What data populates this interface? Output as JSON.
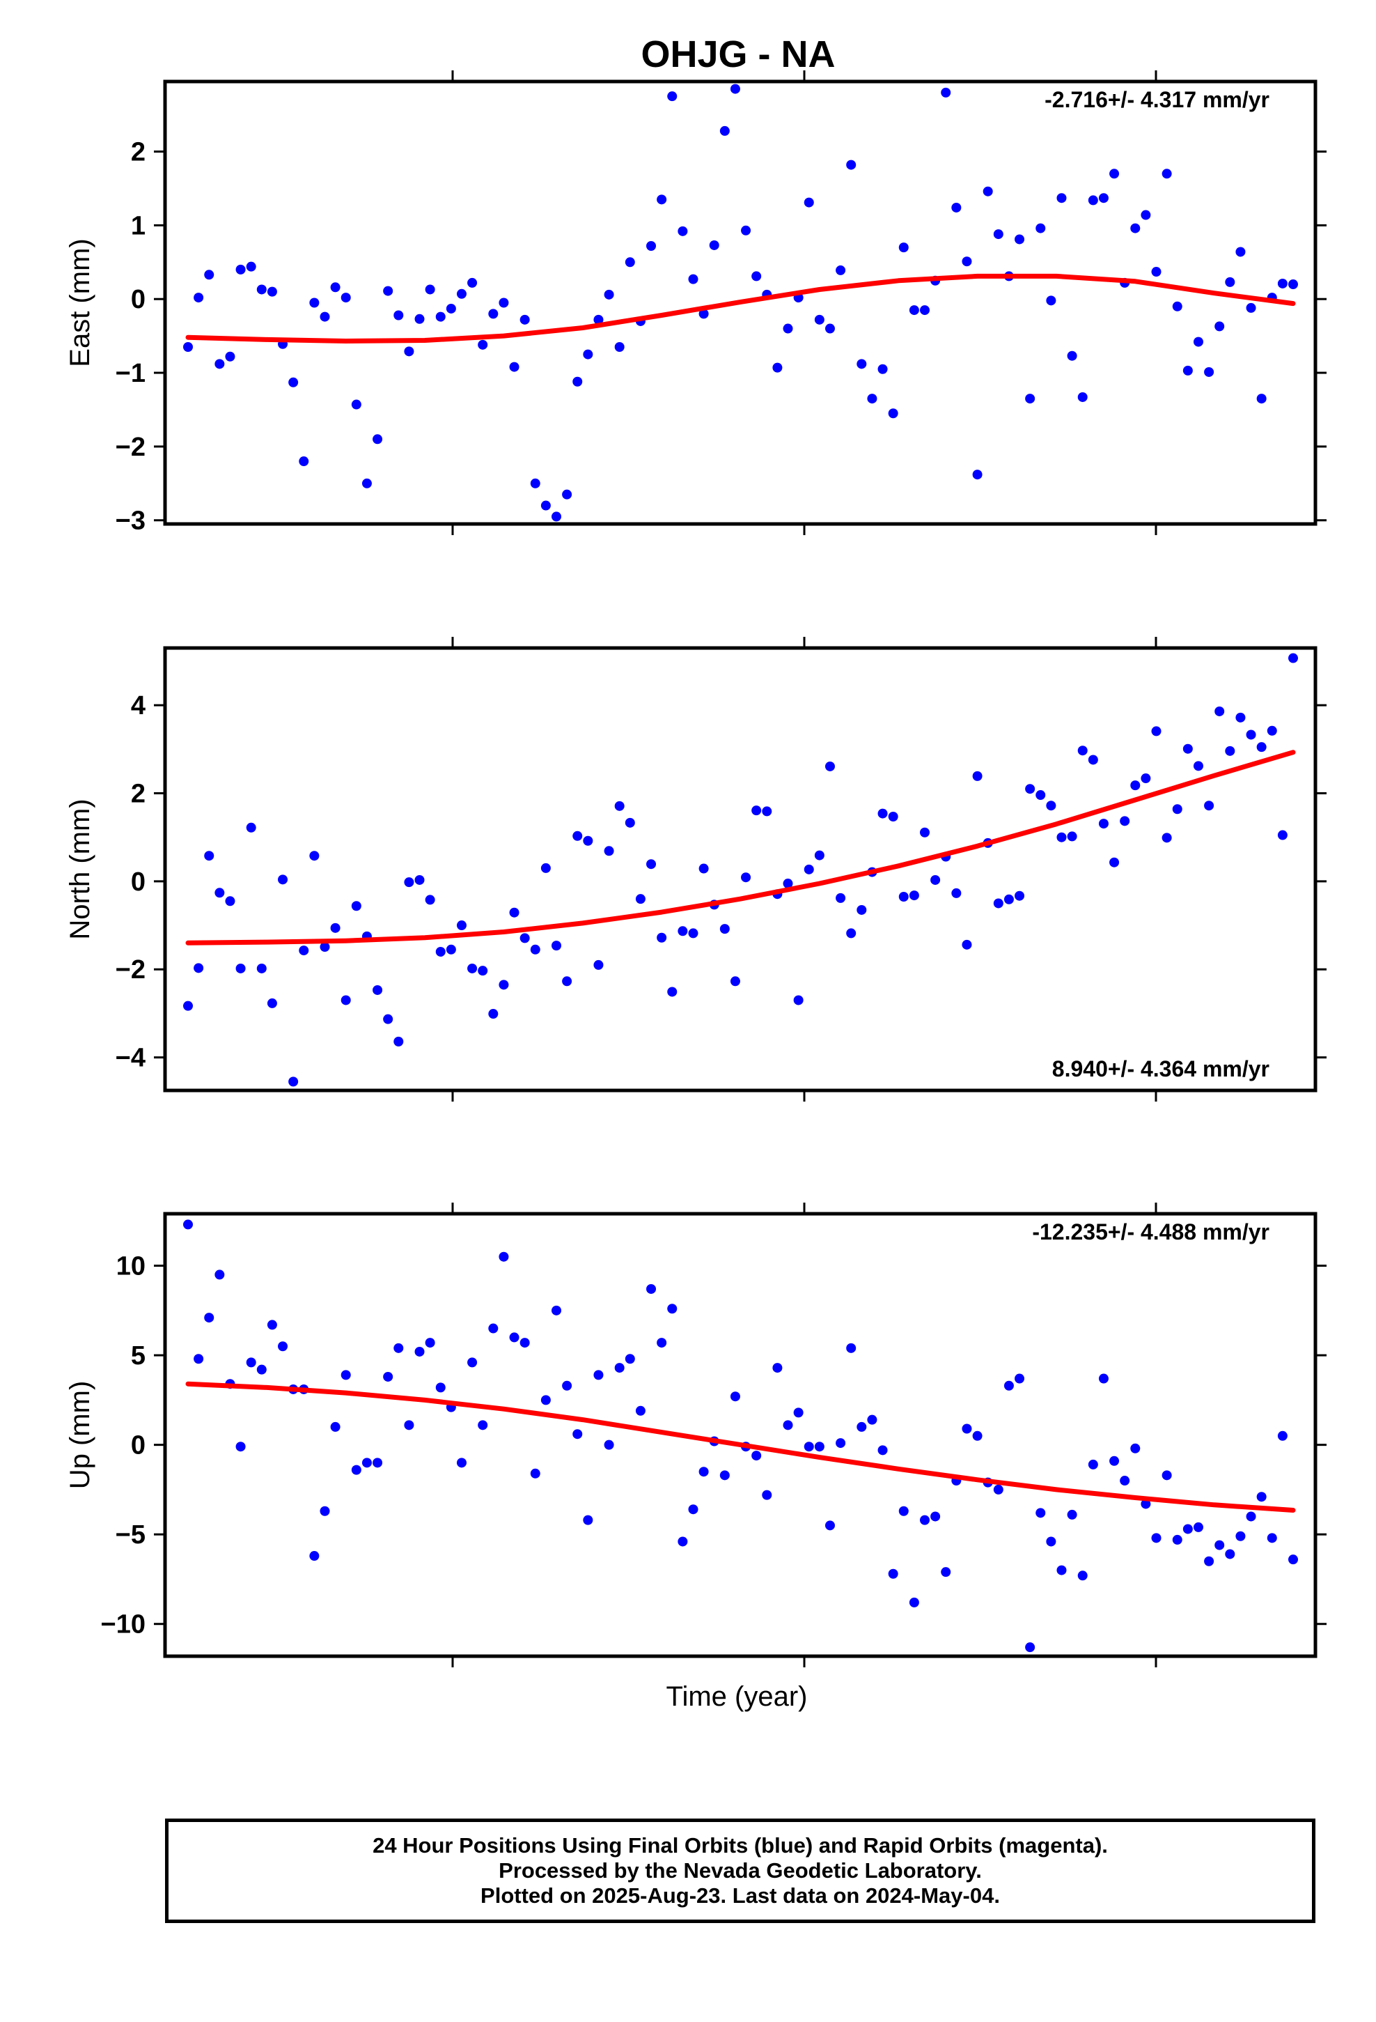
{
  "chart_data": {
    "type": "scatter",
    "title": "OHJG - NA",
    "xlabel": "Time (year)",
    "footer_lines": [
      "24 Hour Positions Using Final Orbits (blue) and Rapid Orbits (magenta).",
      "Processed by the Nevada Geodetic Laboratory.",
      "Plotted on 2025-Aug-23. Last data on 2024-May-04."
    ],
    "colors": {
      "points": "#0000ff",
      "fit": "#ff0000",
      "frame": "#000000"
    },
    "panels": [
      {
        "ylabel": "East (mm)",
        "ylim": [
          -3.05,
          2.95
        ],
        "yticks": [
          2,
          1,
          0,
          -1,
          -2,
          -3
        ],
        "rate_label": "-2.716+/- 4.317 mm/yr",
        "rate_position": "top-right",
        "points": [
          -0.65,
          0.02,
          0.33,
          -0.88,
          -0.78,
          0.4,
          0.44,
          0.13,
          0.1,
          -0.61,
          -1.13,
          -2.2,
          -0.05,
          -0.24,
          0.16,
          0.02,
          -1.43,
          -2.5,
          -1.9,
          0.11,
          -0.22,
          -0.71,
          -0.27,
          0.13,
          -0.24,
          -0.13,
          0.07,
          0.22,
          -0.62,
          -0.2,
          -0.05,
          -0.92,
          -0.28,
          -2.5,
          -2.8,
          -2.95,
          -2.65,
          -1.12,
          -0.75,
          -0.28,
          0.06,
          -0.65,
          0.5,
          -0.3,
          0.72,
          1.35,
          2.75,
          0.92,
          0.27,
          -0.2,
          0.73,
          2.28,
          2.85,
          0.93,
          0.31,
          0.06,
          -0.93,
          -0.4,
          0.02,
          1.31,
          -0.28,
          -0.4,
          0.39,
          1.82,
          -0.88,
          -1.35,
          -0.95,
          -1.55,
          0.7,
          -0.15,
          -0.15,
          0.25,
          2.8,
          1.24,
          0.51,
          -2.38,
          1.46,
          0.88,
          0.31,
          0.81,
          -1.35,
          0.96,
          -0.02,
          1.37,
          -0.77,
          -1.33,
          1.34,
          1.37,
          1.7,
          0.22,
          0.96,
          1.14,
          0.37,
          1.7,
          -0.1,
          -0.97,
          -0.58,
          -0.99,
          -0.37,
          0.23,
          0.64,
          -0.12,
          -1.35,
          0.02,
          0.21,
          0.2
        ],
        "fit": [
          -0.52,
          -0.55,
          -0.57,
          -0.56,
          -0.5,
          -0.39,
          -0.22,
          -0.04,
          0.13,
          0.25,
          0.31,
          0.31,
          0.24,
          0.08,
          -0.06
        ]
      },
      {
        "ylabel": "North (mm)",
        "ylim": [
          -4.75,
          5.3
        ],
        "yticks": [
          4,
          2,
          0,
          -2,
          -4
        ],
        "rate_label": "8.940+/- 4.364 mm/yr",
        "rate_position": "bottom-right",
        "points": [
          -2.83,
          -1.97,
          0.58,
          -0.26,
          -0.45,
          -1.98,
          1.22,
          -1.98,
          -2.77,
          0.04,
          -4.55,
          -1.57,
          0.58,
          -1.49,
          -1.06,
          -2.7,
          -0.56,
          -1.25,
          -2.47,
          -3.13,
          -3.64,
          -0.02,
          0.03,
          -0.42,
          -1.6,
          -1.55,
          -1.0,
          -1.98,
          -2.03,
          -3.01,
          -2.35,
          -0.71,
          -1.29,
          -1.55,
          0.3,
          -1.46,
          -2.27,
          1.03,
          0.92,
          -1.9,
          0.69,
          1.71,
          1.33,
          -0.4,
          0.39,
          -1.28,
          -2.51,
          -1.13,
          -1.18,
          0.29,
          -0.53,
          -1.08,
          -2.27,
          0.09,
          1.61,
          1.59,
          -0.29,
          -0.05,
          -2.7,
          0.27,
          0.59,
          2.61,
          -0.38,
          -1.18,
          -0.65,
          0.21,
          1.54,
          1.47,
          -0.35,
          -0.32,
          1.11,
          0.03,
          0.56,
          -0.27,
          -1.44,
          2.39,
          0.87,
          -0.5,
          -0.41,
          -0.33,
          2.1,
          1.96,
          1.72,
          1.0,
          1.02,
          2.97,
          2.76,
          1.31,
          0.43,
          1.37,
          2.18,
          2.34,
          3.41,
          0.99,
          1.64,
          3.01,
          2.62,
          1.72,
          3.86,
          2.96,
          3.72,
          3.33,
          3.05,
          3.42,
          1.05,
          5.07
        ],
        "fit": [
          -1.4,
          -1.38,
          -1.35,
          -1.28,
          -1.15,
          -0.95,
          -0.7,
          -0.4,
          -0.05,
          0.35,
          0.8,
          1.3,
          1.85,
          2.4,
          2.93
        ]
      },
      {
        "ylabel": "Up (mm)",
        "ylim": [
          -11.8,
          12.9
        ],
        "yticks": [
          10,
          5,
          0,
          -5,
          -10
        ],
        "rate_label": "-12.235+/- 4.488 mm/yr",
        "rate_position": "top-right",
        "points": [
          12.3,
          4.8,
          7.1,
          9.5,
          3.4,
          -0.1,
          4.6,
          4.2,
          6.7,
          5.5,
          3.1,
          3.1,
          -6.2,
          -3.7,
          1.0,
          3.9,
          -1.4,
          -1.0,
          -1.0,
          3.8,
          5.4,
          1.1,
          5.2,
          5.7,
          3.2,
          2.1,
          -1.0,
          4.6,
          1.1,
          6.5,
          10.5,
          6.0,
          5.7,
          -1.6,
          2.5,
          7.5,
          3.3,
          0.6,
          -4.2,
          3.9,
          0.0,
          4.3,
          4.8,
          1.9,
          8.7,
          5.7,
          7.6,
          -5.4,
          -3.6,
          -1.5,
          0.2,
          -1.7,
          2.7,
          -0.1,
          -0.6,
          -2.8,
          4.3,
          1.1,
          1.8,
          -0.1,
          -0.1,
          -4.5,
          0.1,
          5.4,
          1.0,
          1.4,
          -0.3,
          -7.2,
          -3.7,
          -8.8,
          -4.2,
          -4.0,
          -7.1,
          -2.0,
          0.9,
          0.5,
          -2.1,
          -2.5,
          3.3,
          3.7,
          -11.3,
          -3.8,
          -5.4,
          -7.0,
          -3.9,
          -7.3,
          -1.1,
          3.7,
          -0.9,
          -2.0,
          -0.2,
          -3.3,
          -5.2,
          -1.7,
          -5.3,
          -4.7,
          -4.6,
          -6.5,
          -5.6,
          -6.1,
          -5.1,
          -4.0,
          -2.9,
          -5.2,
          0.5,
          -6.4
        ],
        "fit": [
          3.4,
          3.2,
          2.9,
          2.5,
          2.0,
          1.4,
          0.7,
          0.0,
          -0.7,
          -1.35,
          -1.95,
          -2.5,
          -2.95,
          -3.35,
          -3.65
        ]
      }
    ]
  }
}
